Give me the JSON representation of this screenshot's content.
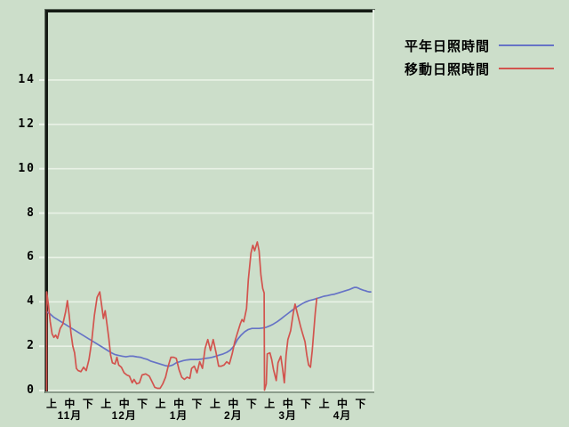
{
  "window": {
    "background": "#ccdeca"
  },
  "legend": {
    "items": [
      {
        "label": "平年日照時間",
        "color": "#6673c6"
      },
      {
        "label": "移動日照時間",
        "color": "#d2544e"
      }
    ]
  },
  "chart_data": {
    "type": "line",
    "title": "",
    "xlabel": "",
    "ylabel": "",
    "legend_position": "top-right-outside",
    "grid": true,
    "colors": {
      "background": "#ccdeca",
      "gridline": "#e9f2e6",
      "tick": "#eef6ec",
      "border_dark": "#151b15",
      "border_light": "#e8f2e6",
      "border_bottom": "#8b9c8b"
    },
    "y_axis": {
      "ticks": [
        0,
        2,
        4,
        6,
        8,
        10,
        12,
        14
      ],
      "displayed_range": [
        0,
        17.2
      ],
      "unit": "hours"
    },
    "x_axis": {
      "note": "x in days from Nov 1",
      "day_range": [
        0,
        181
      ],
      "decade_labels": [
        "上",
        "中",
        "下"
      ],
      "month_labels": [
        "11月",
        "12月",
        "1月",
        "2月",
        "3月",
        "4月"
      ]
    },
    "series": [
      {
        "name": "平年日照時間",
        "color": "#6673c6",
        "points": [
          [
            0,
            3.55
          ],
          [
            2,
            3.45
          ],
          [
            4,
            3.3
          ],
          [
            6,
            3.2
          ],
          [
            8,
            3.1
          ],
          [
            10,
            3.0
          ],
          [
            12,
            2.9
          ],
          [
            14,
            2.8
          ],
          [
            16,
            2.7
          ],
          [
            18,
            2.6
          ],
          [
            20,
            2.5
          ],
          [
            22,
            2.4
          ],
          [
            24,
            2.3
          ],
          [
            26,
            2.2
          ],
          [
            28,
            2.1
          ],
          [
            30,
            2.0
          ],
          [
            32,
            1.9
          ],
          [
            34,
            1.8
          ],
          [
            36,
            1.7
          ],
          [
            38,
            1.62
          ],
          [
            40,
            1.58
          ],
          [
            42,
            1.55
          ],
          [
            44,
            1.52
          ],
          [
            46,
            1.55
          ],
          [
            48,
            1.55
          ],
          [
            50,
            1.52
          ],
          [
            52,
            1.5
          ],
          [
            54,
            1.45
          ],
          [
            56,
            1.4
          ],
          [
            58,
            1.32
          ],
          [
            60,
            1.27
          ],
          [
            62,
            1.22
          ],
          [
            64,
            1.17
          ],
          [
            66,
            1.12
          ],
          [
            68,
            1.1
          ],
          [
            70,
            1.15
          ],
          [
            72,
            1.25
          ],
          [
            74,
            1.3
          ],
          [
            76,
            1.35
          ],
          [
            78,
            1.38
          ],
          [
            80,
            1.4
          ],
          [
            82,
            1.4
          ],
          [
            84,
            1.4
          ],
          [
            86,
            1.42
          ],
          [
            88,
            1.45
          ],
          [
            90,
            1.47
          ],
          [
            92,
            1.5
          ],
          [
            94,
            1.55
          ],
          [
            96,
            1.6
          ],
          [
            98,
            1.65
          ],
          [
            100,
            1.72
          ],
          [
            102,
            1.82
          ],
          [
            104,
            2.0
          ],
          [
            106,
            2.3
          ],
          [
            108,
            2.5
          ],
          [
            110,
            2.65
          ],
          [
            112,
            2.75
          ],
          [
            114,
            2.8
          ],
          [
            116,
            2.8
          ],
          [
            118,
            2.8
          ],
          [
            120,
            2.82
          ],
          [
            122,
            2.85
          ],
          [
            124,
            2.92
          ],
          [
            126,
            3.0
          ],
          [
            128,
            3.1
          ],
          [
            130,
            3.22
          ],
          [
            132,
            3.35
          ],
          [
            134,
            3.47
          ],
          [
            136,
            3.6
          ],
          [
            138,
            3.72
          ],
          [
            140,
            3.82
          ],
          [
            142,
            3.92
          ],
          [
            144,
            4.0
          ],
          [
            146,
            4.06
          ],
          [
            148,
            4.1
          ],
          [
            150,
            4.15
          ],
          [
            152,
            4.2
          ],
          [
            154,
            4.25
          ],
          [
            156,
            4.28
          ],
          [
            158,
            4.32
          ],
          [
            160,
            4.35
          ],
          [
            162,
            4.4
          ],
          [
            164,
            4.45
          ],
          [
            166,
            4.5
          ],
          [
            168,
            4.55
          ],
          [
            170,
            4.62
          ],
          [
            171,
            4.65
          ],
          [
            172,
            4.65
          ],
          [
            173,
            4.62
          ],
          [
            174,
            4.58
          ],
          [
            175,
            4.55
          ],
          [
            176,
            4.52
          ],
          [
            177,
            4.5
          ],
          [
            178,
            4.47
          ],
          [
            179,
            4.45
          ],
          [
            180,
            4.45
          ]
        ]
      },
      {
        "name": "移動日照時間",
        "color": "#d2544e",
        "points": [
          [
            0,
            0.0
          ],
          [
            0,
            4.45
          ],
          [
            1,
            3.85
          ],
          [
            2,
            3.1
          ],
          [
            3,
            2.55
          ],
          [
            4,
            2.4
          ],
          [
            5,
            2.5
          ],
          [
            6,
            2.35
          ],
          [
            7.5,
            2.8
          ],
          [
            9,
            3.0
          ],
          [
            10.5,
            3.55
          ],
          [
            11.5,
            4.05
          ],
          [
            12.5,
            3.4
          ],
          [
            13.5,
            2.6
          ],
          [
            14.5,
            2.0
          ],
          [
            15.5,
            1.7
          ],
          [
            16.5,
            1.0
          ],
          [
            17.5,
            0.9
          ],
          [
            19,
            0.85
          ],
          [
            20.5,
            1.05
          ],
          [
            22,
            0.9
          ],
          [
            23.5,
            1.4
          ],
          [
            25,
            2.2
          ],
          [
            26.5,
            3.4
          ],
          [
            28,
            4.2
          ],
          [
            29.5,
            4.45
          ],
          [
            30.5,
            3.85
          ],
          [
            31.5,
            3.25
          ],
          [
            32.5,
            3.6
          ],
          [
            33.5,
            3.0
          ],
          [
            34.5,
            2.35
          ],
          [
            35.5,
            1.6
          ],
          [
            36.5,
            1.25
          ],
          [
            38,
            1.2
          ],
          [
            39,
            1.5
          ],
          [
            40,
            1.15
          ],
          [
            41.5,
            1.05
          ],
          [
            43,
            0.8
          ],
          [
            44.5,
            0.7
          ],
          [
            46,
            0.65
          ],
          [
            47.5,
            0.35
          ],
          [
            48.5,
            0.5
          ],
          [
            50,
            0.3
          ],
          [
            51.5,
            0.35
          ],
          [
            53,
            0.7
          ],
          [
            55,
            0.75
          ],
          [
            57,
            0.65
          ],
          [
            58.5,
            0.4
          ],
          [
            60,
            0.15
          ],
          [
            61.5,
            0.1
          ],
          [
            63,
            0.1
          ],
          [
            64.5,
            0.3
          ],
          [
            66,
            0.6
          ],
          [
            67.5,
            1.1
          ],
          [
            69,
            1.5
          ],
          [
            70.5,
            1.5
          ],
          [
            72,
            1.45
          ],
          [
            73.5,
            0.95
          ],
          [
            75,
            0.6
          ],
          [
            76.5,
            0.5
          ],
          [
            78,
            0.6
          ],
          [
            79.5,
            0.55
          ],
          [
            80.5,
            1.0
          ],
          [
            82,
            1.1
          ],
          [
            83.5,
            0.8
          ],
          [
            85,
            1.3
          ],
          [
            86.5,
            1.0
          ],
          [
            88,
            1.9
          ],
          [
            89.5,
            2.3
          ],
          [
            91,
            1.8
          ],
          [
            92.5,
            2.3
          ],
          [
            94,
            1.75
          ],
          [
            95.5,
            1.1
          ],
          [
            97,
            1.1
          ],
          [
            98.5,
            1.15
          ],
          [
            100,
            1.3
          ],
          [
            101.5,
            1.2
          ],
          [
            103,
            1.65
          ],
          [
            104.5,
            2.2
          ],
          [
            106,
            2.6
          ],
          [
            107.5,
            3.0
          ],
          [
            108.5,
            3.2
          ],
          [
            109.5,
            3.1
          ],
          [
            111,
            3.7
          ],
          [
            112,
            5.0
          ],
          [
            113.5,
            6.2
          ],
          [
            114.5,
            6.55
          ],
          [
            115.5,
            6.3
          ],
          [
            117,
            6.7
          ],
          [
            118,
            6.3
          ],
          [
            119,
            5.2
          ],
          [
            120,
            4.6
          ],
          [
            120.8,
            4.4
          ],
          [
            121,
            0.02
          ],
          [
            122,
            0.3
          ],
          [
            122.5,
            1.65
          ],
          [
            124,
            1.7
          ],
          [
            125,
            1.4
          ],
          [
            126,
            0.95
          ],
          [
            127.5,
            0.45
          ],
          [
            128.5,
            1.25
          ],
          [
            130,
            1.55
          ],
          [
            131,
            1.0
          ],
          [
            132,
            0.35
          ],
          [
            133,
            1.6
          ],
          [
            134,
            2.3
          ],
          [
            135.5,
            2.7
          ],
          [
            137,
            3.5
          ],
          [
            138,
            3.9
          ],
          [
            139,
            3.55
          ],
          [
            141,
            2.9
          ],
          [
            142,
            2.6
          ],
          [
            143.5,
            2.2
          ],
          [
            144.5,
            1.6
          ],
          [
            145.5,
            1.15
          ],
          [
            146.5,
            1.05
          ],
          [
            147.5,
            1.8
          ],
          [
            148.5,
            2.8
          ],
          [
            149.2,
            3.5
          ],
          [
            150,
            4.15
          ]
        ]
      }
    ]
  }
}
